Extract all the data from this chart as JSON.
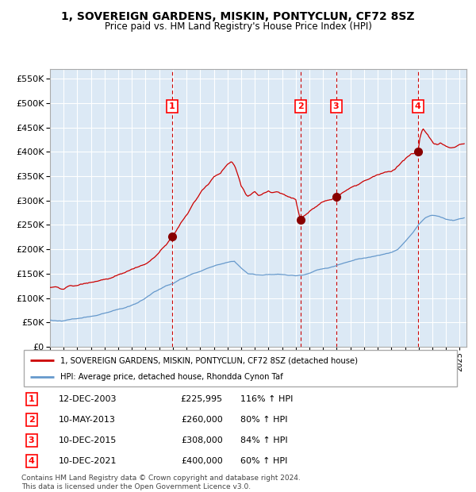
{
  "title": "1, SOVEREIGN GARDENS, MISKIN, PONTYCLUN, CF72 8SZ",
  "subtitle": "Price paid vs. HM Land Registry's House Price Index (HPI)",
  "legend_line1": "1, SOVEREIGN GARDENS, MISKIN, PONTYCLUN, CF72 8SZ (detached house)",
  "legend_line2": "HPI: Average price, detached house, Rhondda Cynon Taf",
  "footer": "Contains HM Land Registry data © Crown copyright and database right 2024.\nThis data is licensed under the Open Government Licence v3.0.",
  "hpi_color": "#6699cc",
  "price_color": "#cc0000",
  "marker_color": "#880000",
  "bg_color": "#dce9f5",
  "grid_color": "#ffffff",
  "vline_color": "#cc0000",
  "sale_points": [
    {
      "label": "1",
      "date": 2003.95,
      "price": 225995
    },
    {
      "label": "2",
      "date": 2013.36,
      "price": 260000
    },
    {
      "label": "3",
      "date": 2015.95,
      "price": 308000
    },
    {
      "label": "4",
      "date": 2021.95,
      "price": 400000
    }
  ],
  "table_rows": [
    {
      "num": "1",
      "date": "12-DEC-2003",
      "price": "£225,995",
      "pct": "116% ↑ HPI"
    },
    {
      "num": "2",
      "date": "10-MAY-2013",
      "price": "£260,000",
      "pct": "80% ↑ HPI"
    },
    {
      "num": "3",
      "date": "10-DEC-2015",
      "price": "£308,000",
      "pct": "84% ↑ HPI"
    },
    {
      "num": "4",
      "date": "10-DEC-2021",
      "price": "£400,000",
      "pct": "60% ↑ HPI"
    }
  ],
  "hpi_keypoints": [
    [
      1995.0,
      55000
    ],
    [
      1995.5,
      54000
    ],
    [
      1996.0,
      53000
    ],
    [
      1996.5,
      55000
    ],
    [
      1997.0,
      58000
    ],
    [
      1997.5,
      62000
    ],
    [
      1998.0,
      63000
    ],
    [
      1998.5,
      65000
    ],
    [
      1999.0,
      68000
    ],
    [
      1999.5,
      72000
    ],
    [
      2000.0,
      76000
    ],
    [
      2000.5,
      80000
    ],
    [
      2001.0,
      86000
    ],
    [
      2001.5,
      92000
    ],
    [
      2002.0,
      100000
    ],
    [
      2002.5,
      110000
    ],
    [
      2003.0,
      118000
    ],
    [
      2003.5,
      125000
    ],
    [
      2004.0,
      130000
    ],
    [
      2004.5,
      138000
    ],
    [
      2005.0,
      144000
    ],
    [
      2005.5,
      150000
    ],
    [
      2006.0,
      155000
    ],
    [
      2006.5,
      160000
    ],
    [
      2007.0,
      165000
    ],
    [
      2007.5,
      170000
    ],
    [
      2008.0,
      174000
    ],
    [
      2008.5,
      175000
    ],
    [
      2009.0,
      162000
    ],
    [
      2009.5,
      150000
    ],
    [
      2010.0,
      148000
    ],
    [
      2010.5,
      148000
    ],
    [
      2011.0,
      149000
    ],
    [
      2011.5,
      149000
    ],
    [
      2012.0,
      148000
    ],
    [
      2012.5,
      147000
    ],
    [
      2013.0,
      146000
    ],
    [
      2013.5,
      148000
    ],
    [
      2014.0,
      152000
    ],
    [
      2014.5,
      157000
    ],
    [
      2015.0,
      160000
    ],
    [
      2015.5,
      163000
    ],
    [
      2016.0,
      167000
    ],
    [
      2016.5,
      171000
    ],
    [
      2017.0,
      175000
    ],
    [
      2017.5,
      180000
    ],
    [
      2018.0,
      183000
    ],
    [
      2018.5,
      186000
    ],
    [
      2019.0,
      188000
    ],
    [
      2019.5,
      190000
    ],
    [
      2020.0,
      193000
    ],
    [
      2020.5,
      200000
    ],
    [
      2021.0,
      215000
    ],
    [
      2021.5,
      232000
    ],
    [
      2022.0,
      252000
    ],
    [
      2022.5,
      265000
    ],
    [
      2023.0,
      270000
    ],
    [
      2023.5,
      268000
    ],
    [
      2024.0,
      262000
    ],
    [
      2024.5,
      260000
    ],
    [
      2025.0,
      263000
    ],
    [
      2025.4,
      265000
    ]
  ],
  "red_keypoints": [
    [
      1995.0,
      122000
    ],
    [
      1995.5,
      121000
    ],
    [
      1996.0,
      120000
    ],
    [
      1996.5,
      123000
    ],
    [
      1997.0,
      126000
    ],
    [
      1997.5,
      130000
    ],
    [
      1998.0,
      132000
    ],
    [
      1998.5,
      135000
    ],
    [
      1999.0,
      138000
    ],
    [
      1999.5,
      142000
    ],
    [
      2000.0,
      148000
    ],
    [
      2000.5,
      153000
    ],
    [
      2001.0,
      158000
    ],
    [
      2001.5,
      163000
    ],
    [
      2002.0,
      170000
    ],
    [
      2002.5,
      180000
    ],
    [
      2003.0,
      192000
    ],
    [
      2003.5,
      210000
    ],
    [
      2003.95,
      225995
    ],
    [
      2004.2,
      235000
    ],
    [
      2004.5,
      248000
    ],
    [
      2005.0,
      270000
    ],
    [
      2005.5,
      295000
    ],
    [
      2006.0,
      315000
    ],
    [
      2006.5,
      330000
    ],
    [
      2007.0,
      348000
    ],
    [
      2007.5,
      358000
    ],
    [
      2008.0,
      375000
    ],
    [
      2008.3,
      382000
    ],
    [
      2008.6,
      368000
    ],
    [
      2009.0,
      330000
    ],
    [
      2009.3,
      315000
    ],
    [
      2009.5,
      310000
    ],
    [
      2009.8,
      315000
    ],
    [
      2010.0,
      318000
    ],
    [
      2010.3,
      312000
    ],
    [
      2010.6,
      316000
    ],
    [
      2011.0,
      320000
    ],
    [
      2011.3,
      316000
    ],
    [
      2011.6,
      318000
    ],
    [
      2012.0,
      314000
    ],
    [
      2012.3,
      310000
    ],
    [
      2012.6,
      306000
    ],
    [
      2013.0,
      302000
    ],
    [
      2013.2,
      275000
    ],
    [
      2013.36,
      260000
    ],
    [
      2013.5,
      265000
    ],
    [
      2013.8,
      272000
    ],
    [
      2014.0,
      278000
    ],
    [
      2014.3,
      283000
    ],
    [
      2014.6,
      288000
    ],
    [
      2015.0,
      296000
    ],
    [
      2015.5,
      303000
    ],
    [
      2015.95,
      308000
    ],
    [
      2016.2,
      312000
    ],
    [
      2016.5,
      318000
    ],
    [
      2017.0,
      325000
    ],
    [
      2017.5,
      332000
    ],
    [
      2018.0,
      340000
    ],
    [
      2018.5,
      346000
    ],
    [
      2019.0,
      352000
    ],
    [
      2019.5,
      357000
    ],
    [
      2020.0,
      360000
    ],
    [
      2020.5,
      372000
    ],
    [
      2021.0,
      386000
    ],
    [
      2021.5,
      395000
    ],
    [
      2021.95,
      400000
    ],
    [
      2022.1,
      430000
    ],
    [
      2022.3,
      448000
    ],
    [
      2022.5,
      440000
    ],
    [
      2022.7,
      432000
    ],
    [
      2023.0,
      420000
    ],
    [
      2023.3,
      415000
    ],
    [
      2023.6,
      418000
    ],
    [
      2024.0,
      412000
    ],
    [
      2024.3,
      408000
    ],
    [
      2024.6,
      410000
    ],
    [
      2025.0,
      415000
    ],
    [
      2025.4,
      418000
    ]
  ],
  "ylim": [
    0,
    570000
  ],
  "xlim_start": 1995.0,
  "xlim_end": 2025.5
}
